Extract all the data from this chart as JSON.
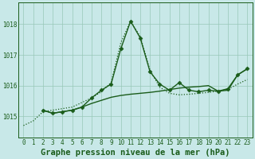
{
  "title": "Graphe pression niveau de la mer (hPa)",
  "bg_color": "#c8e8e8",
  "line_color": "#1a5c1a",
  "grid_color": "#98c8b8",
  "xlim": [
    -0.5,
    23.5
  ],
  "ylim": [
    1014.3,
    1018.7
  ],
  "xticks": [
    0,
    1,
    2,
    3,
    4,
    5,
    6,
    7,
    8,
    9,
    10,
    11,
    12,
    13,
    14,
    15,
    16,
    17,
    18,
    19,
    20,
    21,
    22,
    23
  ],
  "yticks": [
    1015,
    1016,
    1017,
    1018
  ],
  "series": [
    {
      "x": [
        0,
        1,
        2,
        3,
        4,
        5,
        6,
        7,
        8,
        9,
        10,
        11,
        12,
        13,
        14,
        15,
        16,
        17,
        18,
        19,
        20,
        21,
        22,
        23
      ],
      "y": [
        1014.7,
        1014.85,
        1015.15,
        1015.2,
        1015.25,
        1015.3,
        1015.45,
        1015.6,
        1015.8,
        1016.1,
        1017.4,
        1018.1,
        1017.6,
        1016.5,
        1015.95,
        1015.75,
        1015.7,
        1015.72,
        1015.75,
        1015.78,
        1015.82,
        1015.88,
        1016.05,
        1016.2
      ],
      "style": "dotted",
      "marker": null,
      "lw": 0.9
    },
    {
      "x": [
        2,
        3,
        4,
        5,
        6,
        7,
        8,
        9,
        10,
        11,
        12,
        13,
        14,
        15,
        16,
        17,
        18,
        19,
        20,
        21,
        22,
        23
      ],
      "y": [
        1015.2,
        1015.1,
        1015.15,
        1015.2,
        1015.3,
        1015.6,
        1015.85,
        1016.05,
        1017.2,
        1018.1,
        1017.55,
        1016.45,
        1016.05,
        1015.85,
        1016.1,
        1015.85,
        1015.8,
        1015.85,
        1015.82,
        1015.9,
        1016.35,
        1016.55
      ],
      "style": "solid",
      "marker": "D",
      "lw": 1.0
    },
    {
      "x": [
        2,
        3,
        4,
        5,
        6,
        7,
        8,
        9,
        10,
        11,
        12,
        13,
        14,
        15,
        16,
        17,
        18,
        19,
        20,
        21,
        22,
        23
      ],
      "y": [
        1015.2,
        1015.1,
        1015.15,
        1015.2,
        1015.3,
        1015.42,
        1015.52,
        1015.62,
        1015.68,
        1015.72,
        1015.75,
        1015.78,
        1015.82,
        1015.87,
        1015.92,
        1015.95,
        1015.97,
        1016.0,
        1015.82,
        1015.85,
        1016.35,
        1016.55
      ],
      "style": "solid",
      "marker": null,
      "lw": 1.0
    }
  ],
  "title_fontsize": 7.5,
  "tick_fontsize": 5.5
}
